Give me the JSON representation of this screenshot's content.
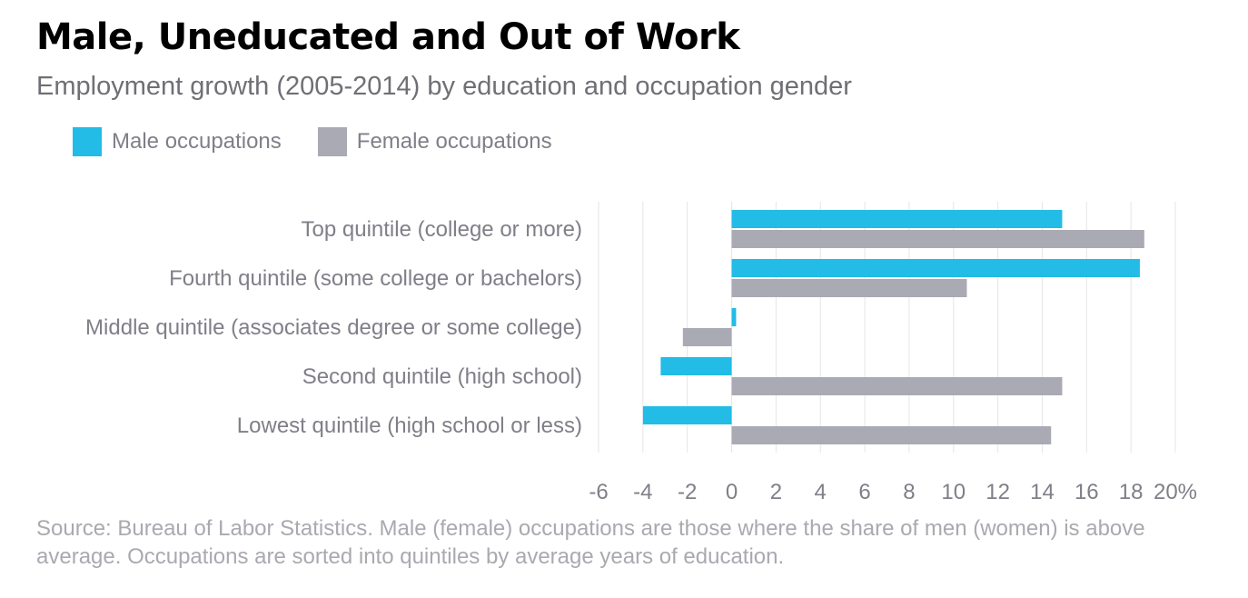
{
  "title": "Male, Uneducated and Out of Work",
  "subtitle": "Employment growth (2005-2014) by education and occupation gender",
  "legend": [
    {
      "label": "Male occupations",
      "color": "#22bce6"
    },
    {
      "label": "Female occupations",
      "color": "#aaaab5"
    }
  ],
  "source": "Source: Bureau of Labor Statistics. Male (female) occupations are those where the share of men (women) is above average. Occupations are sorted into quintiles by average years of education.",
  "chart_data": {
    "type": "bar",
    "orientation": "horizontal",
    "categories": [
      "Top quintile (college or more)",
      "Fourth quintile (some college or bachelors)",
      "Middle quintile (associates degree or some college)",
      "Second quintile (high school)",
      "Lowest quintile (high school or less)"
    ],
    "series": [
      {
        "name": "Male occupations",
        "color": "#22bce6",
        "values": [
          14.9,
          18.4,
          0.2,
          -3.2,
          -4.0
        ]
      },
      {
        "name": "Female occupations",
        "color": "#aaaab5",
        "values": [
          18.6,
          10.6,
          -2.2,
          14.9,
          14.4
        ]
      }
    ],
    "xlim": [
      -6,
      20
    ],
    "xticks": [
      -6,
      -4,
      -2,
      0,
      2,
      4,
      6,
      8,
      10,
      12,
      14,
      16,
      18,
      20
    ],
    "xtick_labels": [
      "-6",
      "-4",
      "-2",
      "0",
      "2",
      "4",
      "6",
      "8",
      "10",
      "12",
      "14",
      "16",
      "18",
      "20%"
    ],
    "grid": true,
    "legend_position": "top-left"
  }
}
